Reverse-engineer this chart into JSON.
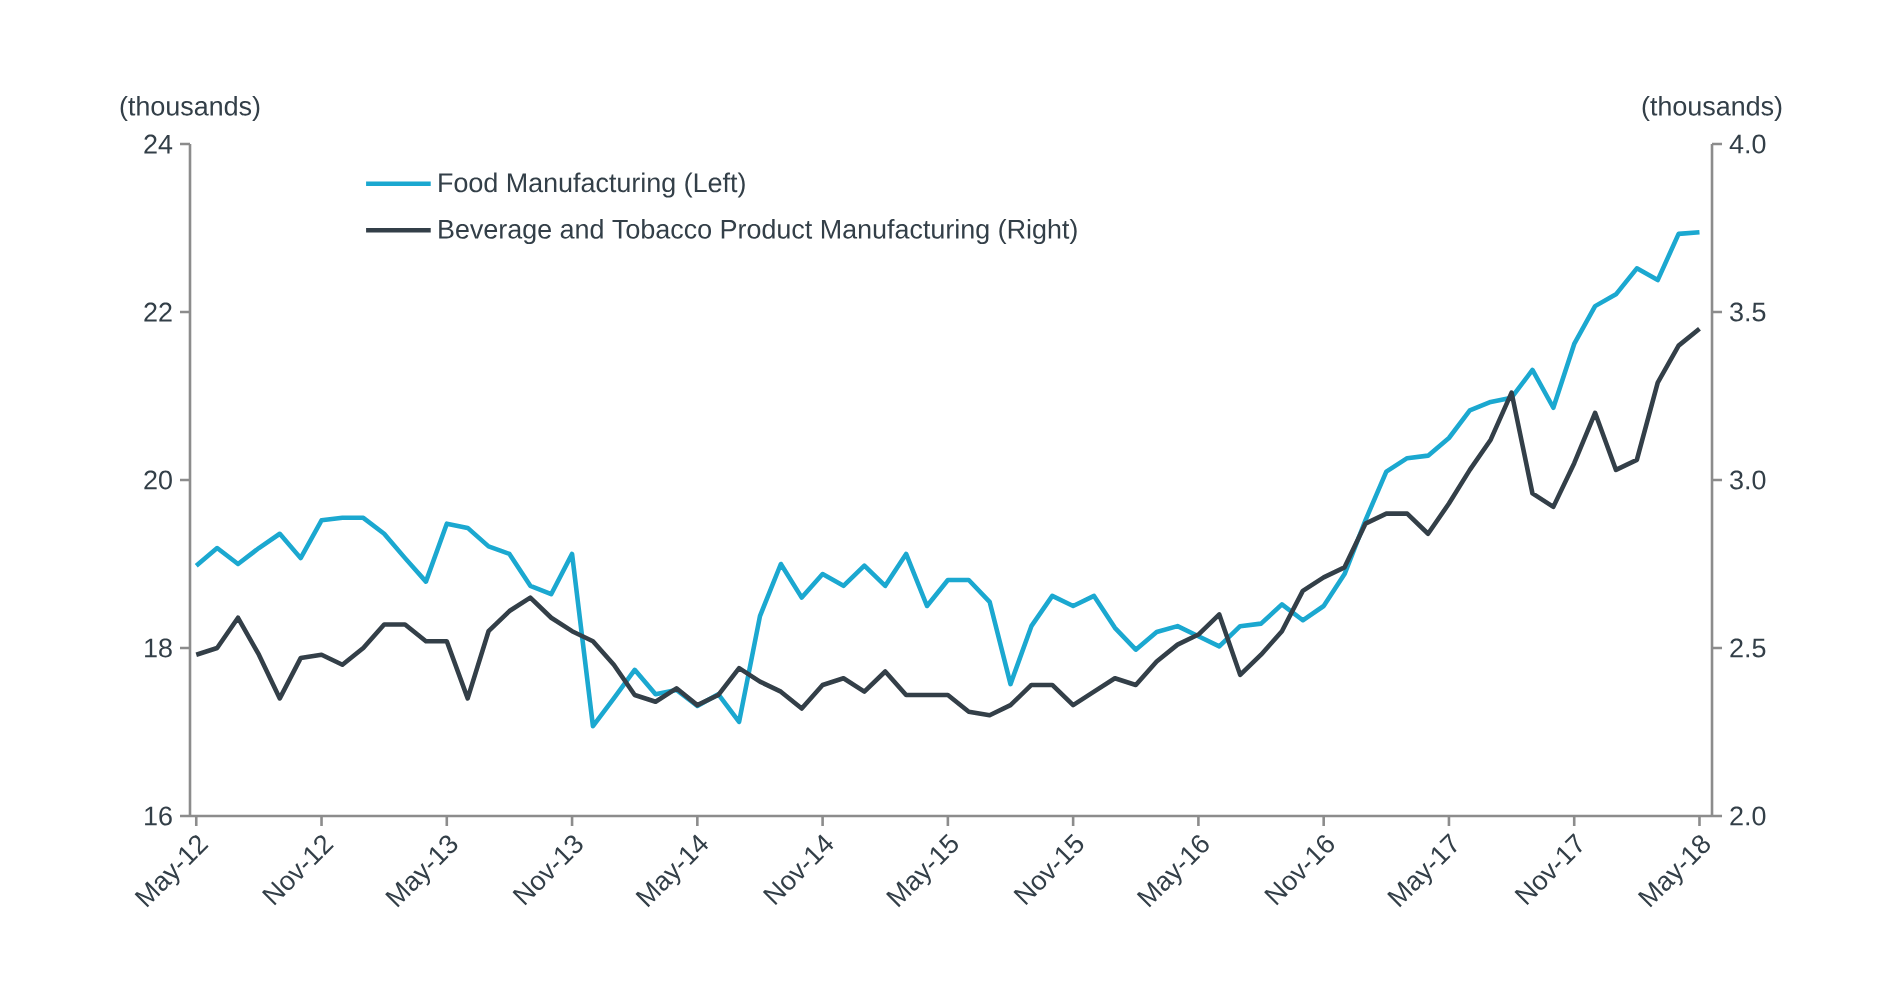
{
  "chart_data": {
    "type": "line",
    "ylabel": "(thousands)",
    "y2label": "(thousands)",
    "categories": [
      "May-12",
      null,
      null,
      null,
      null,
      null,
      "Nov-12",
      null,
      null,
      null,
      null,
      null,
      "May-13",
      null,
      null,
      null,
      null,
      null,
      "Nov-13",
      null,
      null,
      null,
      null,
      null,
      "May-14",
      null,
      null,
      null,
      null,
      null,
      "Nov-14",
      null,
      null,
      null,
      null,
      null,
      "May-15",
      null,
      null,
      null,
      null,
      null,
      "Nov-15",
      null,
      null,
      null,
      null,
      null,
      "May-16",
      null,
      null,
      null,
      null,
      null,
      "Nov-16",
      null,
      null,
      null,
      null,
      null,
      "May-17",
      null,
      null,
      null,
      null,
      null,
      "Nov-17",
      null,
      null,
      null,
      null,
      null,
      "May-18"
    ],
    "series": [
      {
        "name": "Food Manufacturing (Left)",
        "color": "#1ba8d0",
        "axis": "y",
        "values": [
          18.98,
          19.19,
          19.0,
          19.19,
          19.36,
          19.07,
          19.52,
          19.55,
          19.55,
          19.36,
          19.07,
          18.79,
          19.48,
          19.43,
          19.21,
          19.12,
          18.74,
          18.64,
          19.12,
          17.07,
          17.4,
          17.74,
          17.45,
          17.5,
          17.31,
          17.45,
          17.12,
          18.38,
          19.0,
          18.6,
          18.88,
          18.74,
          18.98,
          18.74,
          19.12,
          18.5,
          18.81,
          18.81,
          18.55,
          17.57,
          18.26,
          18.62,
          18.5,
          18.62,
          18.24,
          17.98,
          18.19,
          18.26,
          18.14,
          18.02,
          18.26,
          18.29,
          18.52,
          18.33,
          18.5,
          18.88,
          19.52,
          20.1,
          20.26,
          20.29,
          20.5,
          20.83,
          20.93,
          20.98,
          21.31,
          20.86,
          21.62,
          22.07,
          22.21,
          22.52,
          22.38,
          22.93,
          22.95
        ]
      },
      {
        "name": "Beverage and Tobacco Product Manufacturing (Right)",
        "color": "#333f48",
        "axis": "y2",
        "values": [
          2.48,
          2.5,
          2.59,
          2.48,
          2.35,
          2.47,
          2.48,
          2.45,
          2.5,
          2.57,
          2.57,
          2.52,
          2.52,
          2.35,
          2.55,
          2.61,
          2.65,
          2.59,
          2.55,
          2.52,
          2.45,
          2.36,
          2.34,
          2.38,
          2.33,
          2.36,
          2.44,
          2.4,
          2.37,
          2.32,
          2.39,
          2.41,
          2.37,
          2.43,
          2.36,
          2.36,
          2.36,
          2.31,
          2.3,
          2.33,
          2.39,
          2.39,
          2.33,
          2.37,
          2.41,
          2.39,
          2.46,
          2.51,
          2.54,
          2.6,
          2.42,
          2.48,
          2.55,
          2.67,
          2.71,
          2.74,
          2.87,
          2.9,
          2.9,
          2.84,
          2.93,
          3.03,
          3.12,
          3.26,
          2.96,
          2.92,
          3.05,
          3.2,
          3.03,
          3.06,
          3.29,
          3.4,
          3.45
        ]
      }
    ],
    "ylim": [
      16,
      24
    ],
    "yticks": [
      16,
      18,
      20,
      22,
      24
    ],
    "y2lim": [
      2,
      4
    ],
    "y2ticks": [
      {
        "value": 2,
        "label": "2.0"
      },
      {
        "value": 2.5,
        "label": "2.5"
      },
      {
        "value": 3,
        "label": "3.0"
      },
      {
        "value": 3.5,
        "label": "3.5"
      },
      {
        "value": 4,
        "label": "4.0"
      }
    ],
    "legend": "top left",
    "grid": false,
    "marker": "none",
    "line_style": "solid"
  }
}
